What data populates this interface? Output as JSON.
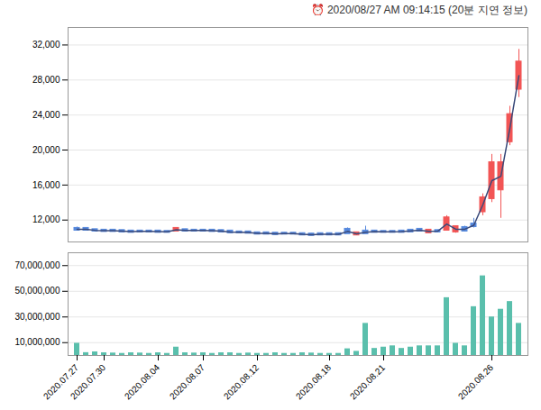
{
  "chart_data": [
    {
      "type": "candlestick",
      "title": "⏰ 2020/08/27 AM 09:14:15 (20분 지연 정보)",
      "categories": [
        "2020.07.27",
        null,
        null,
        "2020.07.30",
        null,
        null,
        null,
        null,
        null,
        "2020.08.04",
        null,
        null,
        null,
        null,
        "2020.08.07",
        null,
        null,
        null,
        null,
        null,
        "2020.08.12",
        null,
        null,
        null,
        null,
        null,
        null,
        null,
        "2020.08.18",
        null,
        null,
        null,
        null,
        null,
        "2020.08.21",
        null,
        null,
        null,
        null,
        null,
        null,
        null,
        null,
        null,
        null,
        null,
        "2020.08.26",
        null,
        null,
        null
      ],
      "open": [
        10900,
        11000,
        10850,
        10800,
        10800,
        10750,
        10700,
        10700,
        10700,
        10700,
        10650,
        10800,
        10850,
        10800,
        10800,
        10800,
        10750,
        10700,
        10600,
        10600,
        10500,
        10500,
        10450,
        10450,
        10450,
        10400,
        10350,
        10350,
        10400,
        10350,
        10500,
        10500,
        10500,
        10700,
        10650,
        10650,
        10650,
        10700,
        10800,
        10800,
        10700,
        10900,
        11200,
        10800,
        11300,
        13000,
        14500,
        18500,
        21000,
        30000
      ],
      "close": [
        11000,
        10900,
        10800,
        10750,
        10750,
        10700,
        10650,
        10700,
        10700,
        10650,
        10650,
        11000,
        10800,
        10800,
        10800,
        10750,
        10700,
        10600,
        10600,
        10550,
        10450,
        10450,
        10400,
        10450,
        10450,
        10350,
        10300,
        10400,
        10350,
        10400,
        10900,
        10350,
        10700,
        10650,
        10650,
        10650,
        10700,
        10800,
        10900,
        10600,
        10750,
        12200,
        10700,
        11100,
        11500,
        14500,
        18500,
        15500,
        24000,
        27000
      ],
      "high": [
        11200,
        11100,
        10950,
        10900,
        10850,
        10850,
        10800,
        10800,
        10800,
        10800,
        10750,
        11100,
        10950,
        10900,
        10900,
        10900,
        10850,
        10750,
        10700,
        10700,
        10600,
        10600,
        10550,
        10550,
        10550,
        10500,
        10450,
        10500,
        10500,
        10500,
        11100,
        10600,
        11300,
        10800,
        10750,
        10750,
        10800,
        10900,
        11000,
        10900,
        10850,
        12500,
        11300,
        11300,
        12200,
        15000,
        19500,
        19500,
        25000,
        31500
      ],
      "low": [
        10800,
        10800,
        10750,
        10700,
        10700,
        10650,
        10600,
        10650,
        10650,
        10600,
        10600,
        10750,
        10750,
        10750,
        10700,
        10700,
        10650,
        10550,
        10550,
        10500,
        10400,
        10400,
        10350,
        10400,
        10400,
        10300,
        10250,
        10300,
        10300,
        10300,
        10450,
        10300,
        10450,
        10600,
        10600,
        10600,
        10600,
        10650,
        10750,
        10550,
        10650,
        10800,
        10500,
        10700,
        11100,
        12500,
        14000,
        12200,
        20500,
        26000
      ],
      "colors": [
        "#5588dd",
        "#5588dd",
        "#5588dd",
        "#5588dd",
        "#5588dd",
        "#5588dd",
        "#5588dd",
        "#5588dd",
        "#5588dd",
        "#5588dd",
        "#5588dd",
        "#f25555",
        "#5588dd",
        "#5588dd",
        "#5588dd",
        "#5588dd",
        "#5588dd",
        "#5588dd",
        "#5588dd",
        "#5588dd",
        "#5588dd",
        "#5588dd",
        "#5588dd",
        "#5588dd",
        "#5588dd",
        "#5588dd",
        "#5588dd",
        "#5588dd",
        "#5588dd",
        "#5588dd",
        "#5588dd",
        "#f25555",
        "#5588dd",
        "#5588dd",
        "#5588dd",
        "#5588dd",
        "#5588dd",
        "#5588dd",
        "#5588dd",
        "#f25555",
        "#5588dd",
        "#f25555",
        "#f25555",
        "#5588dd",
        "#5588dd",
        "#f25555",
        "#f25555",
        "#f25555",
        "#f25555",
        "#f25555"
      ],
      "series": [
        {
          "type": "line",
          "color": "#3a4a7a",
          "values": [
            10950,
            10950,
            10825,
            10775,
            10775,
            10725,
            10675,
            10700,
            10700,
            10675,
            10650,
            10900,
            10825,
            10800,
            10800,
            10775,
            10725,
            10625,
            10600,
            10575,
            10475,
            10475,
            10425,
            10450,
            10450,
            10375,
            10325,
            10375,
            10375,
            10375,
            10700,
            10425,
            10600,
            10675,
            10650,
            10650,
            10675,
            10750,
            10850,
            10700,
            10725,
            11550,
            10950,
            10950,
            11400,
            13750,
            16500,
            17000,
            22500,
            28500
          ]
        }
      ],
      "ylim": [
        9500,
        34000
      ],
      "yticks": [
        {
          "value": 12000,
          "label": "12,000"
        },
        {
          "value": 16000,
          "label": "16,000"
        },
        {
          "value": 20000,
          "label": "20,000"
        },
        {
          "value": 24000,
          "label": "24,000"
        },
        {
          "value": 28000,
          "label": "28,000"
        },
        {
          "value": 32000,
          "label": "32,000"
        }
      ],
      "grid": true,
      "tick_labels": "y"
    },
    {
      "type": "bar",
      "categories": [
        "2020.07.27",
        null,
        null,
        "2020.07.30",
        null,
        null,
        null,
        null,
        null,
        "2020.08.04",
        null,
        null,
        null,
        null,
        "2020.08.07",
        null,
        null,
        null,
        null,
        null,
        "2020.08.12",
        null,
        null,
        null,
        null,
        null,
        null,
        null,
        "2020.08.18",
        null,
        null,
        null,
        null,
        null,
        "2020.08.21",
        null,
        null,
        null,
        null,
        null,
        null,
        null,
        null,
        null,
        null,
        null,
        "2020.08.26",
        null,
        null,
        null
      ],
      "values": [
        9500000,
        2200000,
        2800000,
        2100000,
        1900000,
        1600000,
        2100000,
        1900000,
        1600000,
        2100000,
        1600000,
        6500000,
        2100000,
        1900000,
        2100000,
        1600000,
        2100000,
        2100000,
        1600000,
        1900000,
        1600000,
        1600000,
        2100000,
        1600000,
        1600000,
        2100000,
        1900000,
        1600000,
        1600000,
        1600000,
        5200000,
        3200000,
        25000000,
        5500000,
        6500000,
        7500000,
        5500000,
        6500000,
        7500000,
        7500000,
        7500000,
        45000000,
        9500000,
        7500000,
        38000000,
        62000000,
        30000000,
        36000000,
        42000000,
        25000000
      ],
      "color": "#5abfac",
      "ylim": [
        0,
        80000000
      ],
      "yticks": [
        {
          "value": 10000000,
          "label": "10,000,000"
        },
        {
          "value": 30000000,
          "label": "30,000,000"
        },
        {
          "value": 50000000,
          "label": "50,000,000"
        },
        {
          "value": 70000000,
          "label": "70,000,000"
        }
      ],
      "grid": true
    }
  ]
}
